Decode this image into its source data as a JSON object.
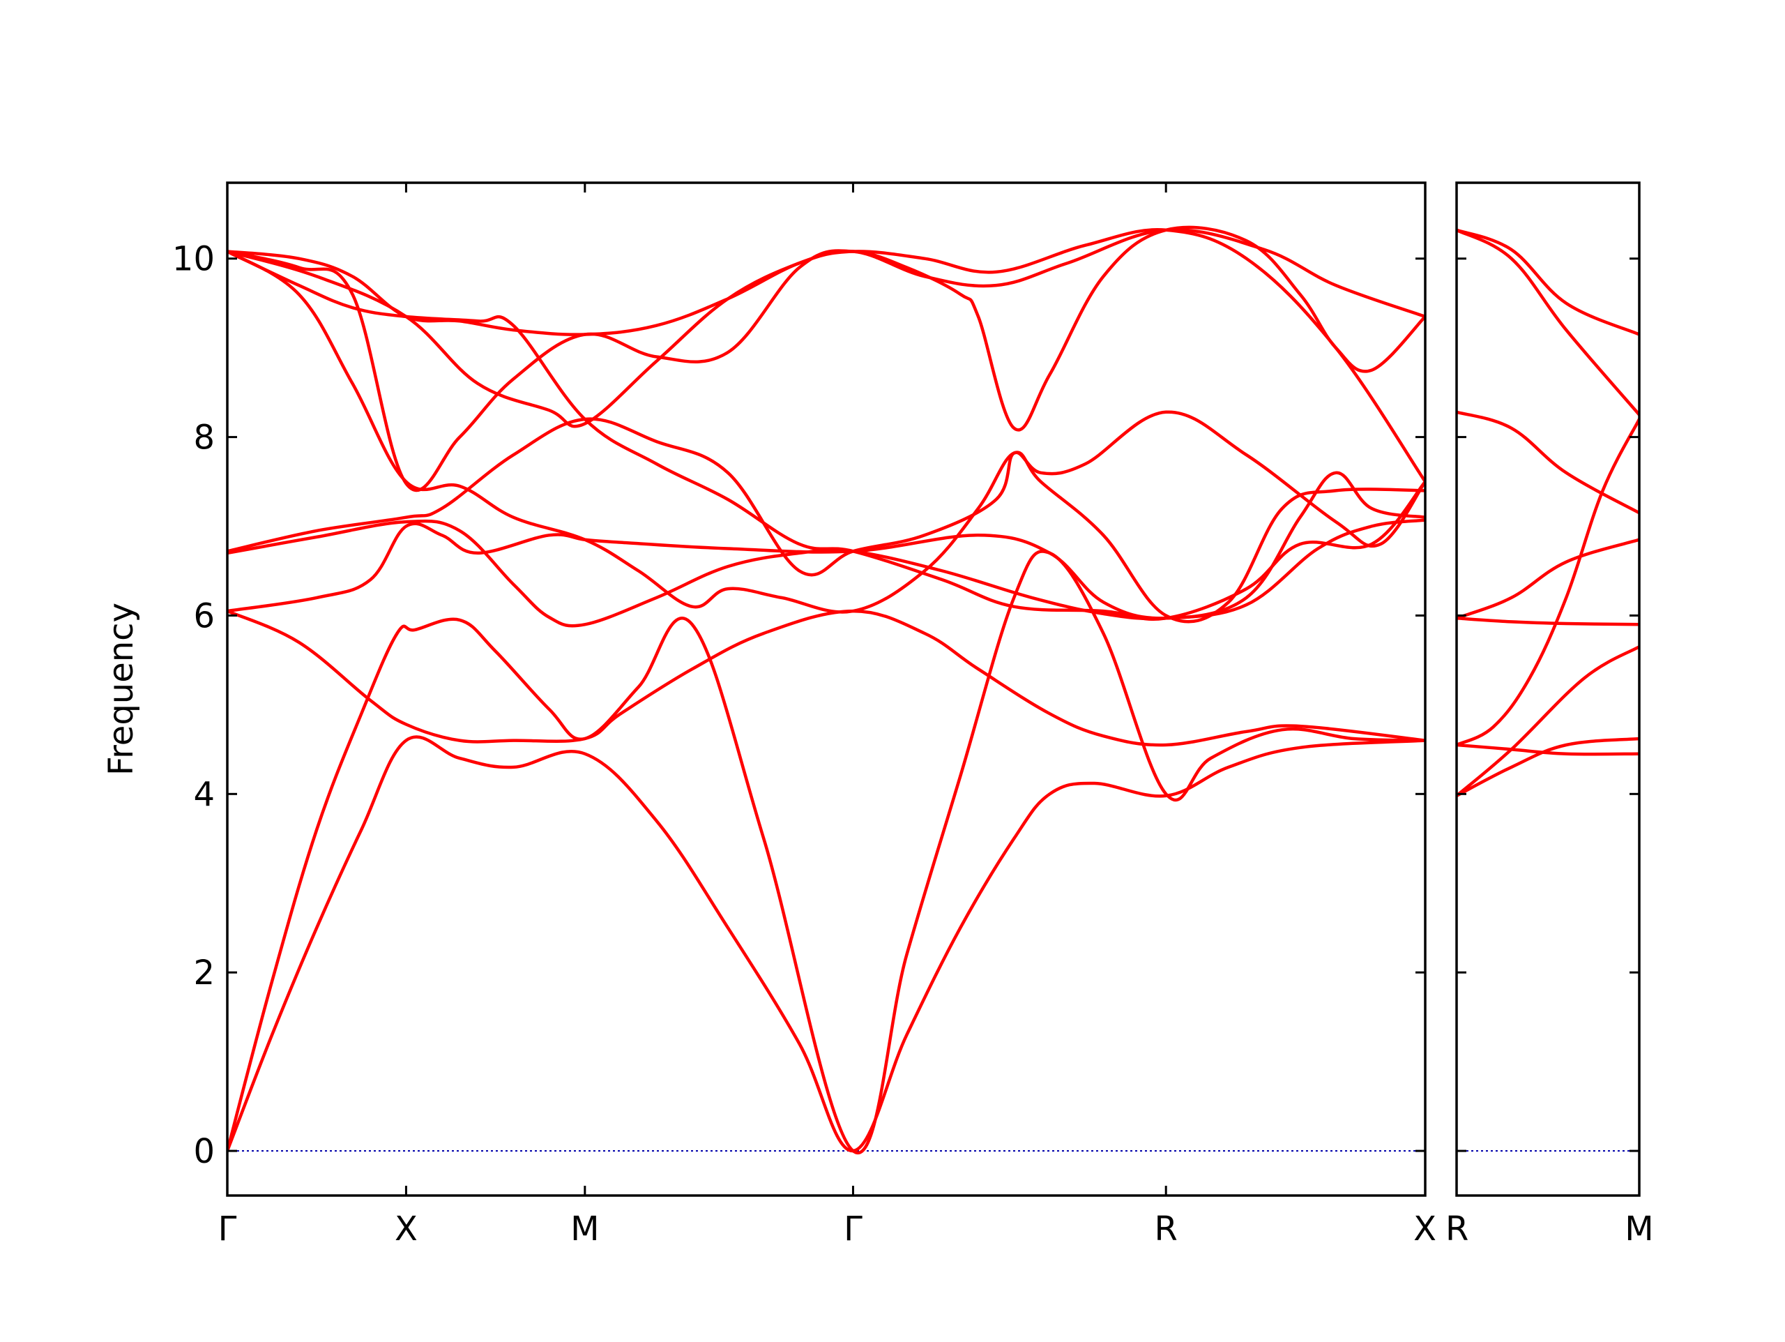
{
  "chart_data": {
    "type": "line",
    "ylabel": "Frequency",
    "ylim": [
      -0.5,
      10.85
    ],
    "yticks": [
      "0",
      "2",
      "4",
      "6",
      "8",
      "10"
    ],
    "grid": false,
    "line_color": "#ff0000",
    "zero_line_color": "#0000aa",
    "panels": [
      {
        "xlim": [
          0,
          6.7
        ],
        "ticks": [
          {
            "x": 0,
            "label": "Γ"
          },
          {
            "x": 1.0,
            "label": "X"
          },
          {
            "x": 2.0,
            "label": "M"
          },
          {
            "x": 3.5,
            "label": "Γ"
          },
          {
            "x": 5.25,
            "label": "R"
          },
          {
            "x": 6.7,
            "label": "X"
          }
        ],
        "bands": [
          [
            [
              0,
              0
            ],
            [
              0.25,
              1.3
            ],
            [
              0.5,
              2.5
            ],
            [
              0.75,
              3.6
            ],
            [
              1.0,
              4.6
            ],
            [
              1.3,
              4.4
            ],
            [
              1.6,
              4.3
            ],
            [
              2.0,
              4.45
            ],
            [
              2.4,
              3.7
            ],
            [
              2.8,
              2.5
            ],
            [
              3.2,
              1.2
            ],
            [
              3.5,
              0
            ],
            [
              3.8,
              1.3
            ],
            [
              4.1,
              2.5
            ],
            [
              4.4,
              3.5
            ],
            [
              4.6,
              4.0
            ],
            [
              4.85,
              4.12
            ],
            [
              5.25,
              3.98
            ],
            [
              5.6,
              4.3
            ],
            [
              6.0,
              4.52
            ],
            [
              6.7,
              4.6
            ]
          ],
          [
            [
              0,
              0
            ],
            [
              0.25,
              1.9
            ],
            [
              0.5,
              3.6
            ],
            [
              0.75,
              4.9
            ],
            [
              0.95,
              5.8
            ],
            [
              1.05,
              5.84
            ],
            [
              1.3,
              5.95
            ],
            [
              1.5,
              5.6
            ],
            [
              1.8,
              4.95
            ],
            [
              2.0,
              4.62
            ],
            [
              2.3,
              5.2
            ],
            [
              2.6,
              5.9
            ],
            [
              3.0,
              3.5
            ],
            [
              3.5,
              0
            ],
            [
              3.8,
              2.2
            ],
            [
              4.1,
              4.2
            ],
            [
              4.4,
              6.2
            ],
            [
              4.6,
              6.7
            ],
            [
              4.9,
              5.8
            ],
            [
              5.25,
              4.0
            ],
            [
              5.5,
              4.4
            ],
            [
              5.9,
              4.72
            ],
            [
              6.3,
              4.62
            ],
            [
              6.7,
              4.6
            ]
          ],
          [
            [
              0,
              6.05
            ],
            [
              0.4,
              5.7
            ],
            [
              0.8,
              5.05
            ],
            [
              1.0,
              4.78
            ],
            [
              1.3,
              4.6
            ],
            [
              1.6,
              4.6
            ],
            [
              2.0,
              4.62
            ],
            [
              2.2,
              4.9
            ],
            [
              2.6,
              5.4
            ],
            [
              3.0,
              5.8
            ],
            [
              3.5,
              6.05
            ],
            [
              3.9,
              5.8
            ],
            [
              4.2,
              5.4
            ],
            [
              4.6,
              4.9
            ],
            [
              4.9,
              4.65
            ],
            [
              5.25,
              4.55
            ],
            [
              5.7,
              4.7
            ],
            [
              6.0,
              4.76
            ],
            [
              6.7,
              4.6
            ]
          ],
          [
            [
              0,
              6.05
            ],
            [
              0.5,
              6.2
            ],
            [
              0.8,
              6.4
            ],
            [
              1.0,
              7.0
            ],
            [
              1.2,
              6.9
            ],
            [
              1.4,
              6.7
            ],
            [
              1.8,
              6.9
            ],
            [
              2.0,
              6.85
            ],
            [
              2.2,
              6.82
            ],
            [
              2.8,
              6.75
            ],
            [
              3.5,
              6.72
            ],
            [
              4.2,
              6.9
            ],
            [
              4.6,
              6.7
            ],
            [
              4.9,
              6.15
            ],
            [
              5.25,
              5.97
            ],
            [
              5.7,
              6.2
            ],
            [
              6.0,
              7.1
            ],
            [
              6.2,
              7.6
            ],
            [
              6.4,
              7.2
            ],
            [
              6.7,
              7.1
            ]
          ],
          [
            [
              0,
              6.7
            ],
            [
              0.5,
              6.88
            ],
            [
              1.0,
              7.05
            ],
            [
              1.3,
              6.95
            ],
            [
              1.6,
              6.35
            ],
            [
              1.8,
              5.98
            ],
            [
              2.0,
              5.9
            ],
            [
              2.4,
              6.2
            ],
            [
              2.8,
              6.55
            ],
            [
              3.2,
              6.7
            ],
            [
              3.5,
              6.72
            ],
            [
              4.0,
              6.5
            ],
            [
              4.5,
              6.2
            ],
            [
              4.9,
              6.02
            ],
            [
              5.25,
              5.97
            ],
            [
              5.7,
              6.12
            ],
            [
              6.1,
              6.75
            ],
            [
              6.4,
              7.0
            ],
            [
              6.7,
              7.07
            ]
          ],
          [
            [
              0,
              6.72
            ],
            [
              0.5,
              6.95
            ],
            [
              1.0,
              7.1
            ],
            [
              1.2,
              7.2
            ],
            [
              1.6,
              7.8
            ],
            [
              2.0,
              8.2
            ],
            [
              2.4,
              7.95
            ],
            [
              2.8,
              7.6
            ],
            [
              3.2,
              6.5
            ],
            [
              3.5,
              6.72
            ],
            [
              3.9,
              6.9
            ],
            [
              4.3,
              7.3
            ],
            [
              4.4,
              7.82
            ],
            [
              4.55,
              7.6
            ],
            [
              4.8,
              7.7
            ],
            [
              5.25,
              8.28
            ],
            [
              5.7,
              7.8
            ],
            [
              6.2,
              7.05
            ],
            [
              6.45,
              6.8
            ],
            [
              6.7,
              7.5
            ]
          ],
          [
            [
              0,
              10.08
            ],
            [
              0.4,
              9.6
            ],
            [
              0.7,
              8.6
            ],
            [
              1.0,
              7.5
            ],
            [
              1.3,
              7.45
            ],
            [
              1.6,
              7.1
            ],
            [
              2.0,
              6.85
            ],
            [
              2.3,
              6.5
            ],
            [
              2.6,
              6.1
            ],
            [
              2.8,
              6.3
            ],
            [
              3.1,
              6.2
            ],
            [
              3.5,
              6.05
            ],
            [
              3.9,
              6.5
            ],
            [
              4.2,
              7.2
            ],
            [
              4.4,
              7.82
            ],
            [
              4.55,
              7.5
            ],
            [
              4.9,
              6.9
            ],
            [
              5.25,
              6.0
            ],
            [
              5.6,
              6.15
            ],
            [
              5.9,
              7.2
            ],
            [
              6.2,
              7.4
            ],
            [
              6.7,
              7.4
            ]
          ],
          [
            [
              0,
              10.08
            ],
            [
              0.4,
              9.7
            ],
            [
              0.7,
              9.45
            ],
            [
              1.0,
              9.35
            ],
            [
              1.4,
              9.3
            ],
            [
              1.6,
              9.25
            ],
            [
              2.0,
              8.2
            ],
            [
              2.4,
              7.7
            ],
            [
              2.8,
              7.3
            ],
            [
              3.2,
              6.8
            ],
            [
              3.5,
              6.72
            ],
            [
              4.0,
              6.4
            ],
            [
              4.4,
              6.1
            ],
            [
              4.9,
              6.05
            ],
            [
              5.25,
              5.97
            ],
            [
              5.7,
              6.3
            ],
            [
              6.0,
              6.8
            ],
            [
              6.4,
              6.8
            ],
            [
              6.7,
              7.5
            ]
          ],
          [
            [
              0,
              10.08
            ],
            [
              0.4,
              10.0
            ],
            [
              0.7,
              9.8
            ],
            [
              1.0,
              9.35
            ],
            [
              1.3,
              9.3
            ],
            [
              1.6,
              9.2
            ],
            [
              2.0,
              9.15
            ],
            [
              2.4,
              9.25
            ],
            [
              2.8,
              9.55
            ],
            [
              3.2,
              9.95
            ],
            [
              3.5,
              10.08
            ],
            [
              3.8,
              9.9
            ],
            [
              4.1,
              9.6
            ],
            [
              4.2,
              9.35
            ],
            [
              4.4,
              8.1
            ],
            [
              4.6,
              8.7
            ],
            [
              4.9,
              9.8
            ],
            [
              5.25,
              10.32
            ],
            [
              5.7,
              10.2
            ],
            [
              6.0,
              9.6
            ],
            [
              6.2,
              9.0
            ],
            [
              6.4,
              8.75
            ],
            [
              6.7,
              9.35
            ]
          ],
          [
            [
              0,
              10.08
            ],
            [
              0.4,
              9.9
            ],
            [
              0.7,
              9.6
            ],
            [
              1.0,
              7.48
            ],
            [
              1.3,
              8.0
            ],
            [
              1.6,
              8.65
            ],
            [
              2.0,
              9.15
            ],
            [
              2.4,
              8.9
            ],
            [
              2.8,
              8.95
            ],
            [
              3.2,
              9.9
            ],
            [
              3.5,
              10.08
            ],
            [
              3.9,
              9.8
            ],
            [
              4.3,
              9.7
            ],
            [
              4.7,
              9.95
            ],
            [
              5.25,
              10.32
            ],
            [
              5.8,
              10.1
            ],
            [
              6.2,
              9.7
            ],
            [
              6.7,
              9.35
            ]
          ],
          [
            [
              0,
              10.08
            ],
            [
              0.5,
              9.8
            ],
            [
              1.0,
              9.35
            ],
            [
              1.4,
              8.6
            ],
            [
              1.8,
              8.3
            ],
            [
              2.0,
              8.15
            ],
            [
              2.4,
              8.85
            ],
            [
              2.8,
              9.55
            ],
            [
              3.2,
              9.95
            ],
            [
              3.5,
              10.08
            ],
            [
              3.9,
              10.0
            ],
            [
              4.3,
              9.85
            ],
            [
              4.8,
              10.15
            ],
            [
              5.25,
              10.32
            ],
            [
              5.7,
              10.0
            ],
            [
              6.2,
              9.0
            ],
            [
              6.7,
              7.5
            ]
          ]
        ]
      },
      {
        "xlim": [
          0,
          1.0
        ],
        "ticks": [
          {
            "x": 0,
            "label": "R"
          },
          {
            "x": 1.0,
            "label": "M"
          }
        ],
        "bands": [
          [
            [
              0,
              3.98
            ],
            [
              0.3,
              4.3
            ],
            [
              0.6,
              4.55
            ],
            [
              1.0,
              4.62
            ]
          ],
          [
            [
              0,
              4.55
            ],
            [
              0.3,
              4.5
            ],
            [
              0.6,
              4.45
            ],
            [
              1.0,
              4.45
            ]
          ],
          [
            [
              0,
              3.98
            ],
            [
              0.3,
              4.5
            ],
            [
              0.7,
              5.3
            ],
            [
              1.0,
              5.65
            ]
          ],
          [
            [
              0,
              4.55
            ],
            [
              0.2,
              4.75
            ],
            [
              0.4,
              5.3
            ],
            [
              0.6,
              6.2
            ],
            [
              0.8,
              7.4
            ],
            [
              1.0,
              8.2
            ]
          ],
          [
            [
              0,
              5.97
            ],
            [
              0.3,
              5.93
            ],
            [
              0.6,
              5.91
            ],
            [
              1.0,
              5.9
            ]
          ],
          [
            [
              0,
              5.97
            ],
            [
              0.3,
              6.2
            ],
            [
              0.6,
              6.6
            ],
            [
              1.0,
              6.85
            ]
          ],
          [
            [
              0,
              8.28
            ],
            [
              0.3,
              8.1
            ],
            [
              0.6,
              7.6
            ],
            [
              1.0,
              7.15
            ]
          ],
          [
            [
              0,
              10.32
            ],
            [
              0.3,
              10.1
            ],
            [
              0.6,
              9.5
            ],
            [
              1.0,
              9.15
            ]
          ],
          [
            [
              0,
              10.32
            ],
            [
              0.3,
              10.0
            ],
            [
              0.6,
              9.2
            ],
            [
              1.0,
              8.25
            ]
          ]
        ]
      }
    ]
  }
}
